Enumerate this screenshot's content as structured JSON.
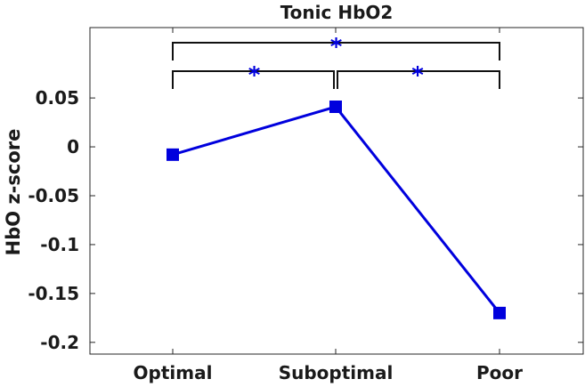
{
  "chart_data": {
    "type": "line",
    "title": "Tonic HbO2",
    "xlabel": "",
    "ylabel": "HbO z-score",
    "categories": [
      "Optimal",
      "Suboptimal",
      "Poor"
    ],
    "series": [
      {
        "values": [
          -0.008,
          0.041,
          -0.17
        ],
        "color": "#0000dd"
      }
    ],
    "yticks": [
      0.05,
      0,
      -0.05,
      -0.1,
      -0.15,
      -0.2
    ],
    "ytick_labels": [
      "0.05",
      "0",
      "-0.05",
      "-0.1",
      "-0.15",
      "-0.2"
    ],
    "ylim": [
      -0.212,
      0.122
    ],
    "grid": false,
    "significance": [
      {
        "from": 0,
        "to": 1,
        "symbol": "*"
      },
      {
        "from": 1,
        "to": 2,
        "symbol": "*"
      },
      {
        "from": 0,
        "to": 2,
        "symbol": "*"
      }
    ],
    "significance_color": "#0000dd"
  }
}
